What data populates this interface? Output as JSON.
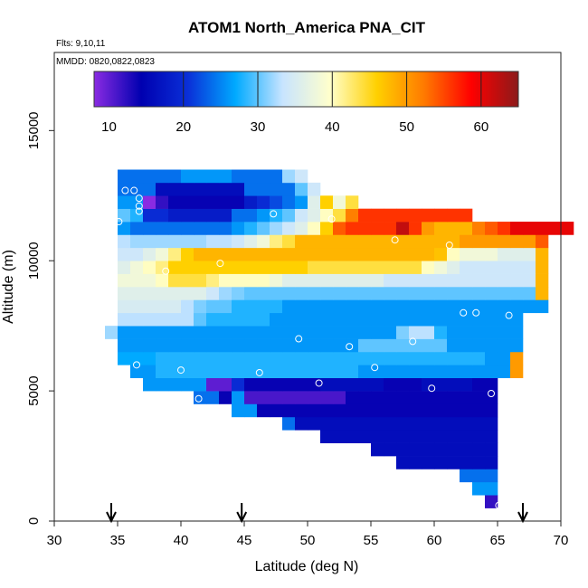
{
  "chart_data": {
    "type": "heatmap",
    "title": "ATOM1 North_America PNA_CIT",
    "notes": [
      "Flts: 9,10,11",
      "MMDD: 0820,0822,0823"
    ],
    "xlabel": "Latitude (deg N)",
    "ylabel": "Altitude (m)",
    "xlim": [
      30,
      70
    ],
    "ylim": [
      0,
      18000
    ],
    "x_ticks": [
      "30",
      "35",
      "40",
      "45",
      "50",
      "55",
      "60",
      "65",
      "70"
    ],
    "y_ticks": [
      "0",
      "5000",
      "10000",
      "15000"
    ],
    "colorbar": {
      "range": [
        8,
        65
      ],
      "ticks": [
        "10",
        "20",
        "30",
        "40",
        "50",
        "60"
      ],
      "tick_values": [
        10,
        20,
        30,
        40,
        50,
        60
      ],
      "colors": [
        "#8a2be2",
        "#0000b0",
        "#0a30d8",
        "#00aaff",
        "#c8e4ff",
        "#ffffcc",
        "#ffd000",
        "#ff7a00",
        "#ff0000",
        "#8b1a1a"
      ]
    },
    "arrows_at_latitude": [
      34.5,
      44.8,
      67
    ],
    "grid_x": {
      "start": 30,
      "step": 1
    },
    "grid_y": {
      "start": 0,
      "step": 500
    },
    "rows": [
      {
        "y": 500,
        "x0": 64,
        "v": [
          12
        ]
      },
      {
        "y": 1000,
        "x0": 63,
        "v": [
          26,
          26
        ]
      },
      {
        "y": 1500,
        "x0": 62,
        "v": [
          24,
          24,
          24
        ]
      },
      {
        "y": 2000,
        "x0": 57,
        "v": [
          16,
          16,
          16,
          16,
          16,
          16,
          16,
          16
        ]
      },
      {
        "y": 2500,
        "x0": 55,
        "v": [
          16,
          16,
          16,
          16,
          16,
          16,
          16,
          16,
          16,
          16
        ]
      },
      {
        "y": 3000,
        "x0": 51,
        "v": [
          16,
          16,
          16,
          16,
          16,
          16,
          16,
          16,
          16,
          16,
          16,
          16,
          16,
          16
        ]
      },
      {
        "y": 3500,
        "x0": 48,
        "v": [
          24,
          16,
          16,
          16,
          16,
          16,
          16,
          16,
          16,
          16,
          16,
          16,
          16,
          16,
          16,
          16,
          16
        ]
      },
      {
        "y": 4000,
        "x0": 44,
        "v": [
          26,
          26,
          14,
          14,
          14,
          14,
          14,
          14,
          14,
          14,
          14,
          14,
          14,
          14,
          14,
          14,
          14,
          14,
          14,
          14,
          14
        ]
      },
      {
        "y": 4500,
        "x0": 41,
        "v": [
          24,
          24,
          14,
          26,
          11,
          11,
          11,
          11,
          11,
          11,
          11,
          11,
          14,
          14,
          14,
          14,
          14,
          14,
          14,
          14,
          14,
          14,
          14,
          14
        ]
      },
      {
        "y": 5000,
        "x0": 37,
        "v": [
          26,
          26,
          26,
          26,
          26,
          10,
          10,
          20,
          14,
          14,
          14,
          14,
          14,
          14,
          16,
          16,
          16,
          16,
          16,
          14,
          14,
          14,
          16,
          16,
          16,
          16,
          14,
          14
        ]
      },
      {
        "y": 5500,
        "x0": 36,
        "v": [
          26,
          26,
          28,
          28,
          28,
          28,
          28,
          28,
          28,
          28,
          28,
          28,
          28,
          28,
          28,
          28,
          28,
          28,
          26,
          26,
          26,
          26,
          26,
          26,
          26,
          26,
          26,
          26,
          26,
          26,
          50
        ]
      },
      {
        "y": 6000,
        "x0": 35,
        "v": [
          27,
          27,
          27,
          28,
          28,
          28,
          28,
          28,
          28,
          28,
          28,
          28,
          28,
          28,
          28,
          28,
          28,
          28,
          28,
          28,
          28,
          28,
          28,
          28,
          28,
          28,
          28,
          28,
          28,
          26,
          26,
          50
        ]
      },
      {
        "y": 6500,
        "x0": 35,
        "v": [
          26,
          26,
          26,
          26,
          26,
          26,
          26,
          26,
          26,
          26,
          26,
          26,
          26,
          26,
          26,
          26,
          26,
          26,
          26,
          30,
          30,
          30,
          30,
          30,
          30,
          30,
          26,
          26,
          26,
          26,
          26,
          26
        ]
      },
      {
        "y": 7000,
        "x0": 34,
        "v": [
          32,
          26,
          26,
          26,
          26,
          26,
          26,
          26,
          26,
          26,
          26,
          26,
          26,
          26,
          26,
          26,
          26,
          26,
          26,
          26,
          26,
          26,
          26,
          31,
          33,
          33,
          28,
          26,
          26,
          26,
          26,
          26,
          26
        ]
      },
      {
        "y": 7500,
        "x0": 35,
        "v": [
          33,
          33,
          33,
          33,
          33,
          33,
          30,
          28,
          28,
          28,
          28,
          28,
          26,
          26,
          26,
          26,
          26,
          26,
          26,
          26,
          26,
          26,
          26,
          26,
          26,
          26,
          26,
          26,
          26,
          26,
          26,
          26
        ]
      },
      {
        "y": 8000,
        "x0": 35,
        "v": [
          35,
          35,
          35,
          35,
          35,
          33,
          31,
          30,
          30,
          28,
          28,
          28,
          28,
          26,
          26,
          26,
          26,
          26,
          26,
          26,
          26,
          26,
          26,
          26,
          26,
          26,
          26,
          26,
          26,
          26,
          26,
          26,
          26,
          26
        ]
      },
      {
        "y": 8500,
        "x0": 35,
        "v": [
          36,
          36,
          36,
          36,
          36,
          36,
          36,
          34,
          32,
          31,
          30,
          30,
          30,
          30,
          30,
          30,
          30,
          30,
          30,
          30,
          30,
          30,
          30,
          30,
          30,
          30,
          30,
          30,
          30,
          30,
          30,
          30,
          30,
          48
        ]
      },
      {
        "y": 9000,
        "x0": 35,
        "v": [
          38,
          38,
          38,
          40,
          44,
          44,
          44,
          42,
          40,
          40,
          40,
          40,
          38,
          36,
          36,
          36,
          36,
          36,
          36,
          36,
          36,
          34,
          34,
          34,
          34,
          34,
          34,
          34,
          34,
          34,
          34,
          34,
          34,
          48
        ]
      },
      {
        "y": 9500,
        "x0": 35,
        "v": [
          36,
          38,
          40,
          42,
          46,
          46,
          46,
          46,
          46,
          46,
          46,
          46,
          46,
          46,
          46,
          44,
          44,
          44,
          44,
          44,
          44,
          44,
          44,
          44,
          40,
          38,
          36,
          34,
          34,
          34,
          34,
          34,
          34,
          48
        ]
      },
      {
        "y": 10000,
        "x0": 35,
        "v": [
          34,
          34,
          36,
          38,
          42,
          46,
          48,
          48,
          48,
          48,
          48,
          48,
          48,
          48,
          48,
          48,
          48,
          48,
          48,
          48,
          48,
          48,
          48,
          48,
          48,
          47,
          40,
          38,
          38,
          38,
          36,
          36,
          36,
          48
        ]
      },
      {
        "y": 10500,
        "x0": 35,
        "v": [
          33,
          32,
          32,
          32,
          32,
          32,
          32,
          33,
          33,
          34,
          36,
          38,
          42,
          44,
          48,
          48,
          48,
          48,
          48,
          48,
          48,
          48,
          48,
          48,
          48,
          48,
          48,
          50,
          50,
          50,
          50,
          50,
          50,
          54
        ]
      },
      {
        "y": 11000,
        "x0": 35,
        "v": [
          26,
          24,
          24,
          24,
          24,
          24,
          24,
          24,
          24,
          26,
          28,
          30,
          32,
          34,
          36,
          40,
          46,
          54,
          56,
          56,
          56,
          56,
          62,
          56,
          50,
          48,
          48,
          48,
          52,
          54,
          56,
          60,
          60,
          60,
          60,
          60
        ]
      },
      {
        "y": 11500,
        "x0": 35,
        "v": [
          30,
          28,
          20,
          20,
          18,
          18,
          18,
          18,
          18,
          24,
          24,
          26,
          28,
          30,
          34,
          36,
          40,
          44,
          52,
          56,
          56,
          56,
          56,
          56,
          56,
          56,
          56,
          56
        ]
      },
      {
        "y": 12000,
        "x0": 35,
        "v": [
          26,
          26,
          8,
          12,
          14,
          14,
          14,
          14,
          14,
          14,
          18,
          20,
          22,
          24,
          26,
          36,
          46,
          38,
          44
        ]
      },
      {
        "y": 12500,
        "x0": 35,
        "v": [
          24,
          24,
          24,
          16,
          16,
          16,
          16,
          16,
          16,
          16,
          24,
          24,
          24,
          24,
          30,
          34
        ]
      },
      {
        "y": 13000,
        "x0": 35,
        "v": [
          24,
          24,
          24,
          24,
          24,
          26,
          26,
          26,
          26,
          24,
          24,
          24,
          24,
          32,
          34
        ]
      }
    ],
    "markers": [
      [
        35.1,
        11500
      ],
      [
        35.6,
        12700
      ],
      [
        36.3,
        12700
      ],
      [
        36.7,
        12400
      ],
      [
        36.7,
        12100
      ],
      [
        36.7,
        11900
      ],
      [
        36.5,
        6000
      ],
      [
        37.9,
        4600
      ],
      [
        38.8,
        9600
      ],
      [
        40,
        5800
      ],
      [
        41.4,
        4700
      ],
      [
        43.1,
        9900
      ],
      [
        46.2,
        5700
      ],
      [
        47.3,
        11800
      ],
      [
        49.3,
        7000
      ],
      [
        50.9,
        5300
      ],
      [
        51.9,
        11600
      ],
      [
        53.3,
        6700
      ],
      [
        55.3,
        5900
      ],
      [
        56.9,
        10800
      ],
      [
        58.3,
        6900
      ],
      [
        59.8,
        5100
      ],
      [
        61.2,
        10600
      ],
      [
        62.3,
        8000
      ],
      [
        63.3,
        8000
      ],
      [
        64.5,
        4900
      ],
      [
        65.1,
        600
      ],
      [
        65.4,
        3900
      ],
      [
        65.9,
        7900
      ],
      [
        70,
        10800
      ]
    ]
  }
}
